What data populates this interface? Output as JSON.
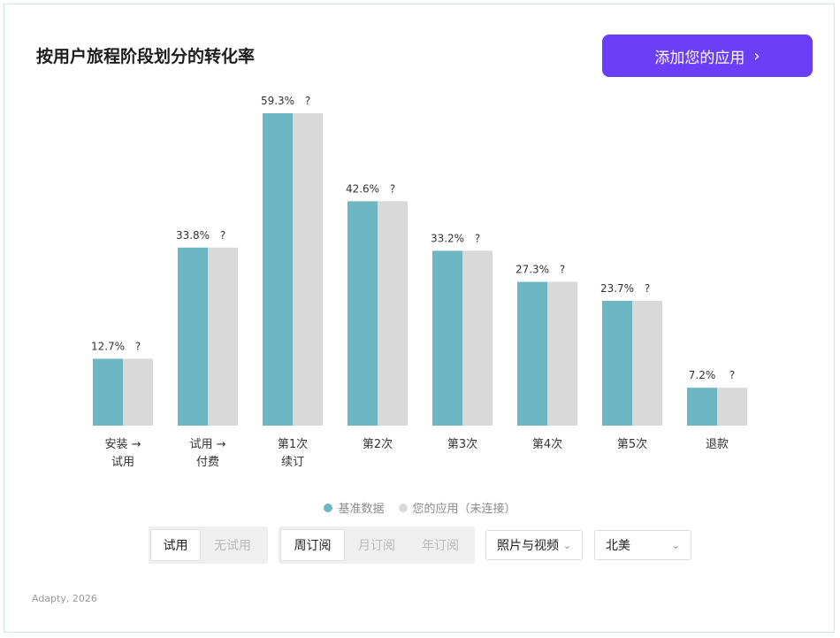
{
  "header": {
    "title": "按用户旅程阶段划分的转化率",
    "cta_label": "添加您的应用",
    "cta_icon": "chevron-right-icon"
  },
  "chart_data": {
    "type": "bar",
    "categories": [
      "安装 →\n试用",
      "试用 →\n付费",
      "第1次\n续订",
      "第2次",
      "第3次",
      "第4次",
      "第5次",
      "退款"
    ],
    "series": [
      {
        "name": "基准数据",
        "color": "#6fb6c3",
        "values": [
          12.7,
          33.8,
          59.3,
          42.6,
          33.2,
          27.3,
          23.7,
          7.2
        ],
        "labels": [
          "12.7%",
          "33.8%",
          "59.3%",
          "42.6%",
          "33.2%",
          "27.3%",
          "23.7%",
          "7.2%"
        ]
      },
      {
        "name": "您的应用（未连接）",
        "color": "#d9d9d9",
        "values": [
          12.7,
          33.8,
          59.3,
          42.6,
          33.2,
          27.3,
          23.7,
          7.2
        ],
        "labels": [
          "?",
          "?",
          "?",
          "?",
          "?",
          "?",
          "?",
          "?"
        ]
      }
    ],
    "ylim": [
      0,
      60
    ],
    "grid": false,
    "legend_position": "bottom-center"
  },
  "legend": {
    "baseline_label": "基准数据",
    "app_label": "您的应用（未连接）"
  },
  "filters": {
    "trial": {
      "options": [
        "试用",
        "无试用"
      ],
      "selected": "试用"
    },
    "period": {
      "options": [
        "周订阅",
        "月订阅",
        "年订阅"
      ],
      "selected": "周订阅"
    },
    "category": {
      "value": "照片与视频",
      "icon": "chevron-down-icon"
    },
    "region": {
      "value": "北美",
      "icon": "chevron-down-icon"
    }
  },
  "footer": {
    "source": "Adapty, 2026"
  }
}
